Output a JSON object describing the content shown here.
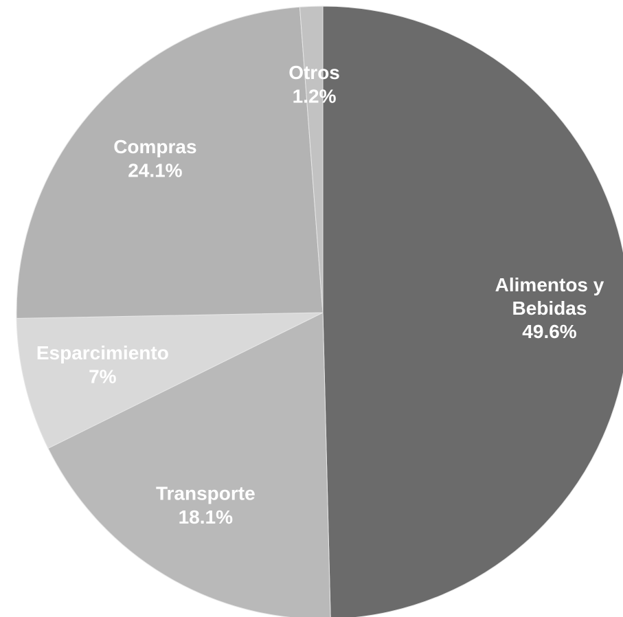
{
  "chart_data": {
    "type": "pie",
    "categories": [
      "Alimentos y Bebidas",
      "Transporte",
      "Esparcimiento",
      "Compras",
      "Otros"
    ],
    "values": [
      49.6,
      18.1,
      7,
      24.1,
      1.2
    ],
    "value_labels": [
      "49.6%",
      "18.1%",
      "7%",
      "24.1%",
      "1.2%"
    ],
    "colors": [
      "#6b6b6b",
      "#b9b9b9",
      "#d9d9d9",
      "#b3b3b3",
      "#c2c2c2"
    ]
  }
}
